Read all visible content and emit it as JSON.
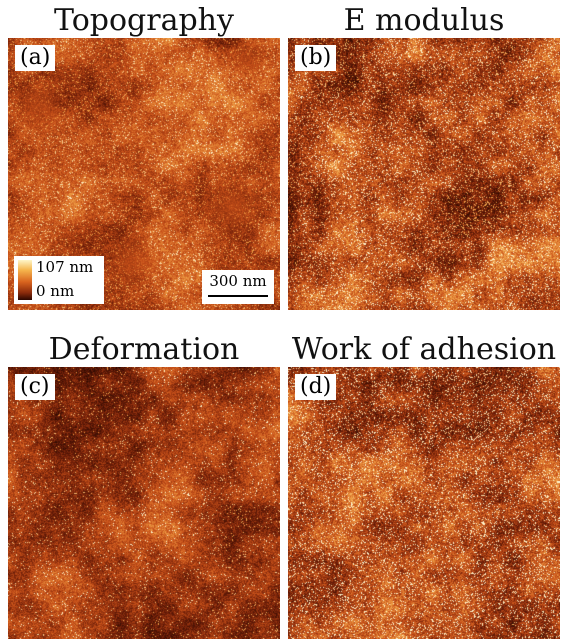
{
  "panels": [
    {
      "title": "Topography",
      "tag": "(a)"
    },
    {
      "title": "E modulus",
      "tag": "(b)"
    },
    {
      "title": "Deformation",
      "tag": "(c)"
    },
    {
      "title": "Work of adhesion",
      "tag": "(d)"
    }
  ],
  "colorbar": {
    "max_label": "107 nm",
    "min_label": "0 nm",
    "colors": [
      "#fff6c8",
      "#f5b54d",
      "#d8631e",
      "#8a2a0b",
      "#2b0700"
    ]
  },
  "scalebar": {
    "label": "300 nm"
  }
}
